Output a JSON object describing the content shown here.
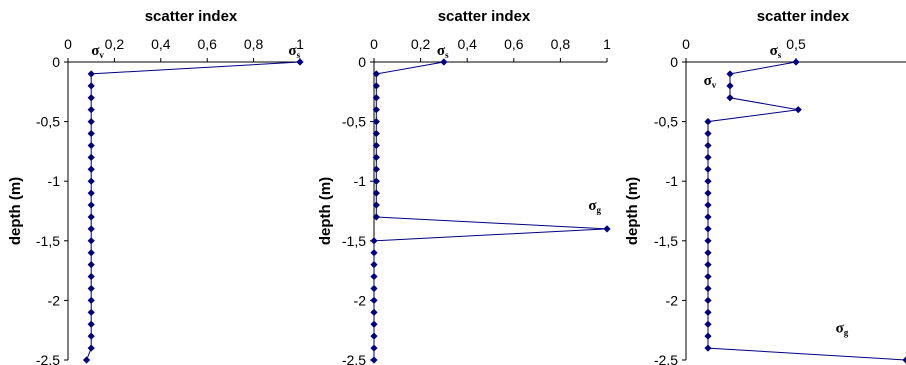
{
  "chart_data": [
    {
      "type": "line",
      "title": "scatter index",
      "xlabel": "scatter index",
      "ylabel": "depth (m)",
      "xlim": [
        0,
        1
      ],
      "ylim": [
        -2.5,
        0
      ],
      "x_ticks": [
        "0",
        "0,2",
        "0,4",
        "0,6",
        "0,8",
        "1"
      ],
      "y_ticks": [
        "0",
        "-0,5",
        "-1",
        "-1,5",
        "-2",
        "-2,5"
      ],
      "points": [
        {
          "x": 1.0,
          "y": 0.0
        },
        {
          "x": 0.1,
          "y": -0.1
        },
        {
          "x": 0.1,
          "y": -0.2
        },
        {
          "x": 0.1,
          "y": -0.3
        },
        {
          "x": 0.1,
          "y": -0.4
        },
        {
          "x": 0.1,
          "y": -0.5
        },
        {
          "x": 0.1,
          "y": -0.6
        },
        {
          "x": 0.1,
          "y": -0.7
        },
        {
          "x": 0.1,
          "y": -0.8
        },
        {
          "x": 0.1,
          "y": -0.9
        },
        {
          "x": 0.1,
          "y": -1.0
        },
        {
          "x": 0.1,
          "y": -1.1
        },
        {
          "x": 0.1,
          "y": -1.2
        },
        {
          "x": 0.1,
          "y": -1.3
        },
        {
          "x": 0.1,
          "y": -1.4
        },
        {
          "x": 0.1,
          "y": -1.5
        },
        {
          "x": 0.1,
          "y": -1.6
        },
        {
          "x": 0.1,
          "y": -1.7
        },
        {
          "x": 0.1,
          "y": -1.8
        },
        {
          "x": 0.1,
          "y": -1.9
        },
        {
          "x": 0.1,
          "y": -2.0
        },
        {
          "x": 0.1,
          "y": -2.1
        },
        {
          "x": 0.1,
          "y": -2.2
        },
        {
          "x": 0.1,
          "y": -2.3
        },
        {
          "x": 0.1,
          "y": -2.4
        },
        {
          "x": 0.08,
          "y": -2.5
        }
      ],
      "annotations": [
        {
          "base": "σ",
          "sub": "v",
          "x": 0.1,
          "y": 0.0
        },
        {
          "base": "σ",
          "sub": "s",
          "x": 0.95,
          "y": 0.0
        }
      ]
    },
    {
      "type": "line",
      "title": "scatter index",
      "xlabel": "scatter index",
      "ylabel": "depth (m)",
      "xlim": [
        0,
        1
      ],
      "ylim": [
        -2.5,
        0
      ],
      "x_ticks": [
        "0",
        "0,2",
        "0,4",
        "0,6",
        "0,8",
        "1"
      ],
      "y_ticks": [
        "0",
        "-0,5",
        "-1",
        "-1,5",
        "-2",
        "-2,5"
      ],
      "points": [
        {
          "x": 0.3,
          "y": 0.0
        },
        {
          "x": 0.01,
          "y": -0.1
        },
        {
          "x": 0.01,
          "y": -0.2
        },
        {
          "x": 0.01,
          "y": -0.3
        },
        {
          "x": 0.01,
          "y": -0.4
        },
        {
          "x": 0.01,
          "y": -0.5
        },
        {
          "x": 0.01,
          "y": -0.6
        },
        {
          "x": 0.01,
          "y": -0.7
        },
        {
          "x": 0.01,
          "y": -0.8
        },
        {
          "x": 0.01,
          "y": -0.9
        },
        {
          "x": 0.01,
          "y": -1.0
        },
        {
          "x": 0.01,
          "y": -1.1
        },
        {
          "x": 0.01,
          "y": -1.2
        },
        {
          "x": 0.01,
          "y": -1.3
        },
        {
          "x": 1.0,
          "y": -1.4
        },
        {
          "x": 0.0,
          "y": -1.5
        },
        {
          "x": 0.0,
          "y": -1.6
        },
        {
          "x": 0.0,
          "y": -1.7
        },
        {
          "x": 0.0,
          "y": -1.8
        },
        {
          "x": 0.0,
          "y": -1.9
        },
        {
          "x": 0.0,
          "y": -2.0
        },
        {
          "x": 0.0,
          "y": -2.1
        },
        {
          "x": 0.0,
          "y": -2.2
        },
        {
          "x": 0.0,
          "y": -2.3
        },
        {
          "x": 0.0,
          "y": -2.4
        },
        {
          "x": 0.0,
          "y": -2.5
        }
      ],
      "annotations": [
        {
          "base": "σ",
          "sub": "s",
          "x": 0.27,
          "y": 0.0
        },
        {
          "base": "σ",
          "sub": "g",
          "x": 0.92,
          "y": -1.3
        }
      ]
    },
    {
      "type": "line",
      "title": "scatter index",
      "xlabel": "scatter index",
      "ylabel": "depth (m)",
      "xlim": [
        0,
        1.0
      ],
      "ylim": [
        -2.5,
        0
      ],
      "x_ticks": [
        "0",
        "0,5"
      ],
      "y_ticks": [
        "0",
        "-0,5",
        "-1",
        "-1,5",
        "-2",
        "-2,5"
      ],
      "points": [
        {
          "x": 0.5,
          "y": 0.0
        },
        {
          "x": 0.2,
          "y": -0.1
        },
        {
          "x": 0.2,
          "y": -0.2
        },
        {
          "x": 0.2,
          "y": -0.3
        },
        {
          "x": 0.51,
          "y": -0.4
        },
        {
          "x": 0.1,
          "y": -0.5
        },
        {
          "x": 0.1,
          "y": -0.6
        },
        {
          "x": 0.1,
          "y": -0.7
        },
        {
          "x": 0.1,
          "y": -0.8
        },
        {
          "x": 0.1,
          "y": -0.9
        },
        {
          "x": 0.1,
          "y": -1.0
        },
        {
          "x": 0.1,
          "y": -1.1
        },
        {
          "x": 0.1,
          "y": -1.2
        },
        {
          "x": 0.1,
          "y": -1.3
        },
        {
          "x": 0.1,
          "y": -1.4
        },
        {
          "x": 0.1,
          "y": -1.5
        },
        {
          "x": 0.1,
          "y": -1.6
        },
        {
          "x": 0.1,
          "y": -1.7
        },
        {
          "x": 0.1,
          "y": -1.8
        },
        {
          "x": 0.1,
          "y": -1.9
        },
        {
          "x": 0.1,
          "y": -2.0
        },
        {
          "x": 0.1,
          "y": -2.1
        },
        {
          "x": 0.1,
          "y": -2.2
        },
        {
          "x": 0.1,
          "y": -2.3
        },
        {
          "x": 0.1,
          "y": -2.4
        },
        {
          "x": 1.0,
          "y": -2.5
        }
      ],
      "annotations": [
        {
          "base": "σ",
          "sub": "s",
          "x": 0.38,
          "y": 0.0
        },
        {
          "base": "σ",
          "sub": "v",
          "x": 0.08,
          "y": -0.25
        },
        {
          "base": "σ",
          "sub": "g",
          "x": 0.68,
          "y": -2.33
        }
      ]
    }
  ]
}
